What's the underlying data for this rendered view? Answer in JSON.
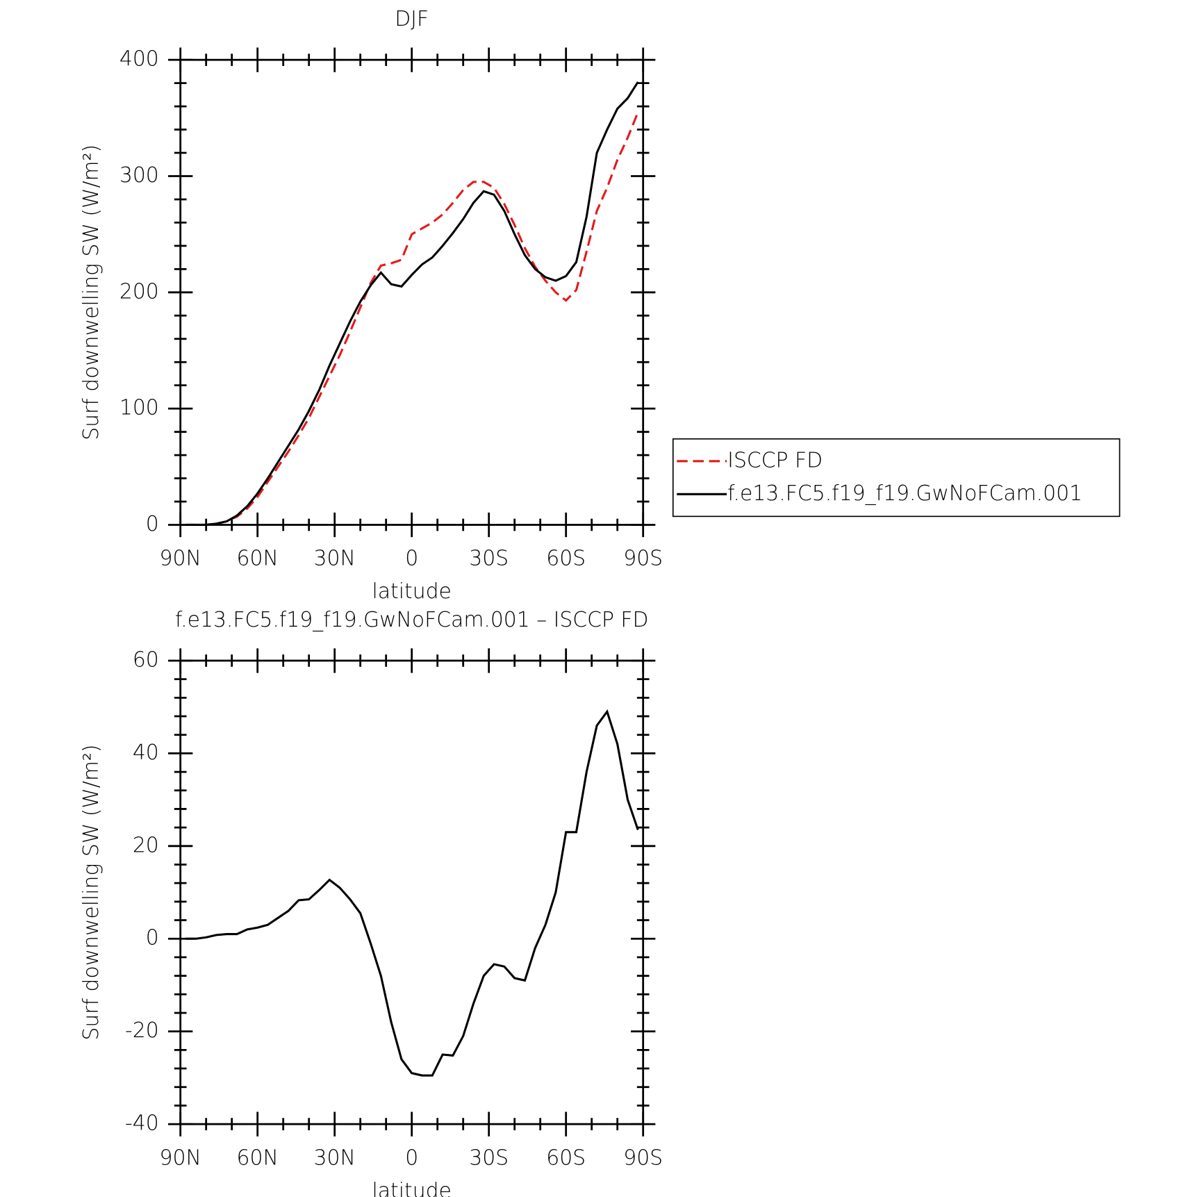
{
  "chart_data": [
    {
      "type": "line",
      "title": "DJF",
      "xlabel": "latitude",
      "ylabel": "Surf downwelling SW (W/m²)",
      "x": [
        88,
        84,
        80,
        76,
        72,
        68,
        64,
        60,
        56,
        52,
        48,
        44,
        40,
        36,
        32,
        28,
        24,
        20,
        16,
        12,
        8,
        4,
        0,
        -4,
        -8,
        -12,
        -16,
        -20,
        -24,
        -28,
        -32,
        -36,
        -40,
        -44,
        -48,
        -52,
        -56,
        -60,
        -64,
        -68,
        -72,
        -76,
        -80,
        -84,
        -88
      ],
      "xlim": [
        90,
        -90
      ],
      "xticks": [
        {
          "value": 90,
          "label": "90N"
        },
        {
          "value": 60,
          "label": "60N"
        },
        {
          "value": 30,
          "label": "30N"
        },
        0,
        {
          "value": -30,
          "label": "30S"
        },
        {
          "value": -60,
          "label": "60S"
        },
        {
          "value": -90,
          "label": "90S"
        }
      ],
      "ylim": [
        0,
        400
      ],
      "yticks": [
        0,
        100,
        200,
        300,
        400
      ],
      "legend": "right",
      "series": [
        {
          "name": "ISCCP FD",
          "color": "#e41a1c",
          "dashed": true,
          "values": [
            0,
            0,
            0,
            1,
            3,
            7,
            14,
            24,
            37,
            50,
            63,
            77,
            92,
            110,
            128,
            146,
            166,
            187,
            208,
            223,
            225,
            228,
            250,
            255,
            260,
            267,
            277,
            288,
            295,
            295,
            290,
            276,
            258,
            238,
            222,
            210,
            200,
            193,
            202,
            235,
            270,
            290,
            314,
            333,
            355
          ]
        },
        {
          "name": "f.e13.FC5.f19_f19.GwNoFCam.001",
          "color": "#000000",
          "dashed": false,
          "values": [
            0,
            0,
            0,
            1,
            3,
            8,
            16,
            27,
            40,
            54,
            68,
            82,
            98,
            116,
            137,
            156,
            175,
            192,
            206,
            217,
            207,
            205,
            215,
            224,
            230,
            240,
            251,
            263,
            277,
            287,
            284,
            270,
            250,
            232,
            220,
            213,
            210,
            214,
            226,
            265,
            320,
            340,
            358,
            367,
            381
          ]
        }
      ]
    },
    {
      "type": "line",
      "title": "f.e13.FC5.f19_f19.GwNoFCam.001 – ISCCP FD",
      "xlabel": "latitude",
      "ylabel": "Surf downwelling SW (W/m²)",
      "x": [
        88,
        84,
        80,
        76,
        72,
        68,
        64,
        60,
        56,
        52,
        48,
        44,
        40,
        36,
        32,
        28,
        24,
        20,
        16,
        12,
        8,
        4,
        0,
        -4,
        -8,
        -12,
        -16,
        -20,
        -24,
        -28,
        -32,
        -36,
        -40,
        -44,
        -48,
        -52,
        -56,
        -60,
        -64,
        -68,
        -72,
        -76,
        -80,
        -84,
        -88
      ],
      "xlim": [
        90,
        -90
      ],
      "xticks": [
        {
          "value": 90,
          "label": "90N"
        },
        {
          "value": 60,
          "label": "60N"
        },
        {
          "value": 30,
          "label": "30N"
        },
        0,
        {
          "value": -30,
          "label": "30S"
        },
        {
          "value": -60,
          "label": "60S"
        },
        {
          "value": -90,
          "label": "90S"
        }
      ],
      "ylim": [
        -40,
        60
      ],
      "yticks": [
        -40,
        -20,
        0,
        20,
        40,
        60
      ],
      "series": [
        {
          "color": "#000000",
          "dashed": false,
          "values": [
            0,
            0,
            0.3,
            0.8,
            1,
            1,
            2,
            2.4,
            3,
            4.5,
            6,
            8.3,
            8.5,
            10.5,
            12.7,
            11,
            8.5,
            5.5,
            -1,
            -8,
            -18,
            -26,
            -29,
            -29.5,
            -29.5,
            -25,
            -25.2,
            -21,
            -14,
            -8,
            -5.5,
            -6,
            -8.5,
            -9,
            -2,
            3,
            10,
            23,
            23,
            36,
            46,
            49,
            42,
            30,
            23.5
          ]
        }
      ]
    }
  ]
}
